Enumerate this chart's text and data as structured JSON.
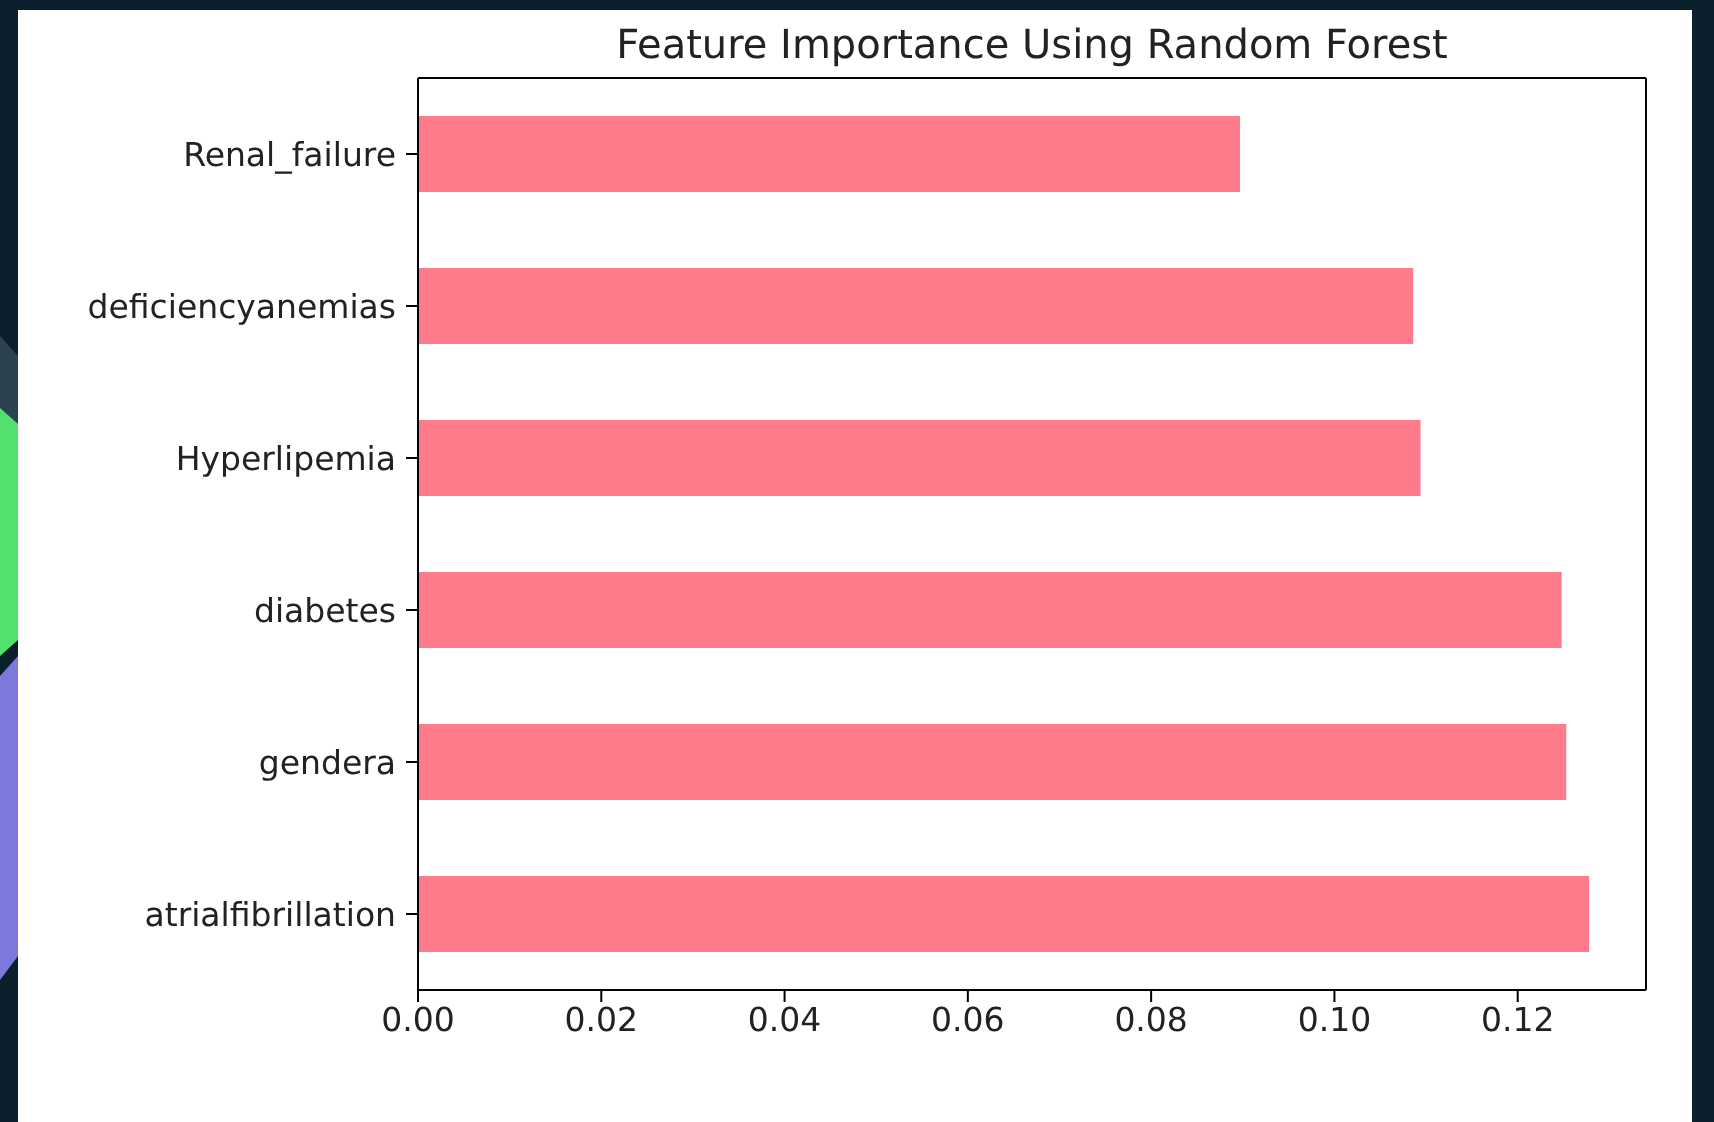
{
  "chart_data": {
    "type": "bar",
    "orientation": "horizontal",
    "title": "Feature Importance Using Random Forest",
    "categories": [
      "Renal_failure",
      "deficiencyanemias",
      "Hyperlipemia",
      "diabetes",
      "gendera",
      "atrialfibrillation"
    ],
    "values": [
      0.0897,
      0.1086,
      0.1094,
      0.1248,
      0.1253,
      0.1278
    ],
    "color": "#fe7b8c",
    "xlim": [
      0,
      0.134
    ],
    "xticks": [
      {
        "value": 0,
        "label": "0.00"
      },
      {
        "value": 0.02,
        "label": "0.02"
      },
      {
        "value": 0.04,
        "label": "0.04"
      },
      {
        "value": 0.06,
        "label": "0.06"
      },
      {
        "value": 0.08,
        "label": "0.08"
      },
      {
        "value": 0.1,
        "label": "0.10"
      },
      {
        "value": 0.12,
        "label": "0.12"
      }
    ]
  }
}
